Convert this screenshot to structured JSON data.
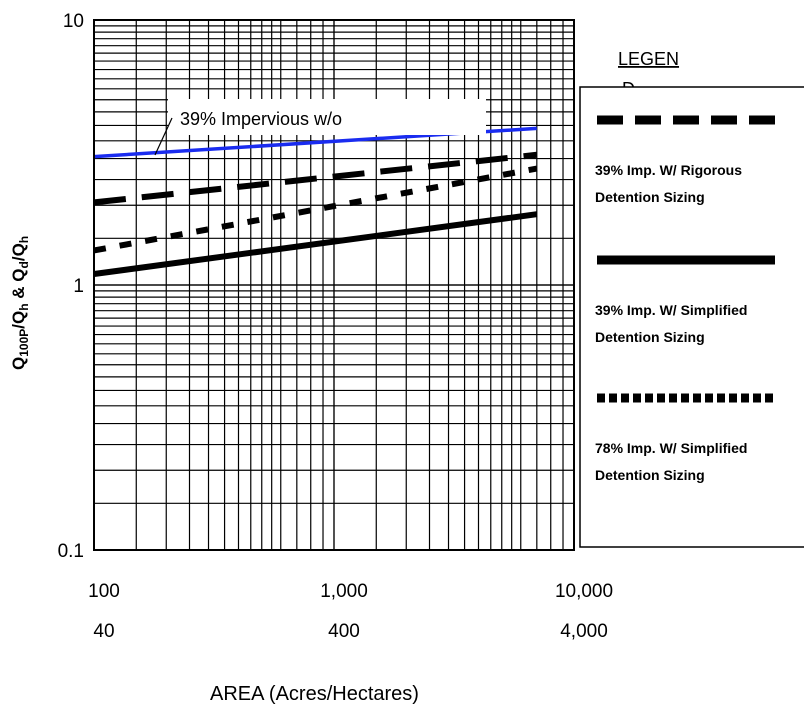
{
  "chart_data": {
    "type": "line",
    "title": "",
    "xlabel": "AREA (Acres/Hectares)",
    "ylabel_parts": [
      "Q",
      "100P",
      "/Q",
      "h",
      " & Q",
      "d",
      "/Q",
      "h"
    ],
    "x_scale": "log",
    "y_scale": "log",
    "xlim": [
      100,
      10000
    ],
    "ylim": [
      0.1,
      10
    ],
    "grid": true,
    "x_ticks": [
      {
        "value": 100,
        "label": "100",
        "sublabel": "40"
      },
      {
        "value": 1000,
        "label": "1,000",
        "sublabel": "400"
      },
      {
        "value": 10000,
        "label": "10,000",
        "sublabel": "4,000"
      }
    ],
    "y_ticks": [
      {
        "value": 10,
        "label": "10"
      },
      {
        "value": 1,
        "label": "1"
      },
      {
        "value": 0.1,
        "label": "0.1"
      }
    ],
    "legend_title": "LEGEN",
    "legend_title_overflow": "D",
    "legend_position": "right",
    "annotation": "39% Impervious w/o",
    "series": [
      {
        "key": "blue",
        "color": "#1a2cf0",
        "style": "solid",
        "x": [
          100,
          7000
        ],
        "values": [
          3.05,
          3.9
        ]
      },
      {
        "key": "rigorous",
        "name_lines": [
          "39% Imp. W/ Rigorous",
          "Detention Sizing"
        ],
        "color": "#000000",
        "style": "dash",
        "x": [
          100,
          7000
        ],
        "values": [
          2.05,
          3.1
        ]
      },
      {
        "key": "simplified39",
        "name_lines": [
          "39% Imp. W/ Simplified",
          "Detention Sizing"
        ],
        "color": "#000000",
        "style": "solid",
        "x": [
          100,
          7000
        ],
        "values": [
          1.1,
          1.85
        ]
      },
      {
        "key": "simplified78",
        "name_lines": [
          "78% Imp. W/ Simplified",
          "Detention Sizing"
        ],
        "color": "#000000",
        "style": "dot",
        "x": [
          100,
          7000
        ],
        "values": [
          1.35,
          2.75
        ]
      }
    ]
  }
}
